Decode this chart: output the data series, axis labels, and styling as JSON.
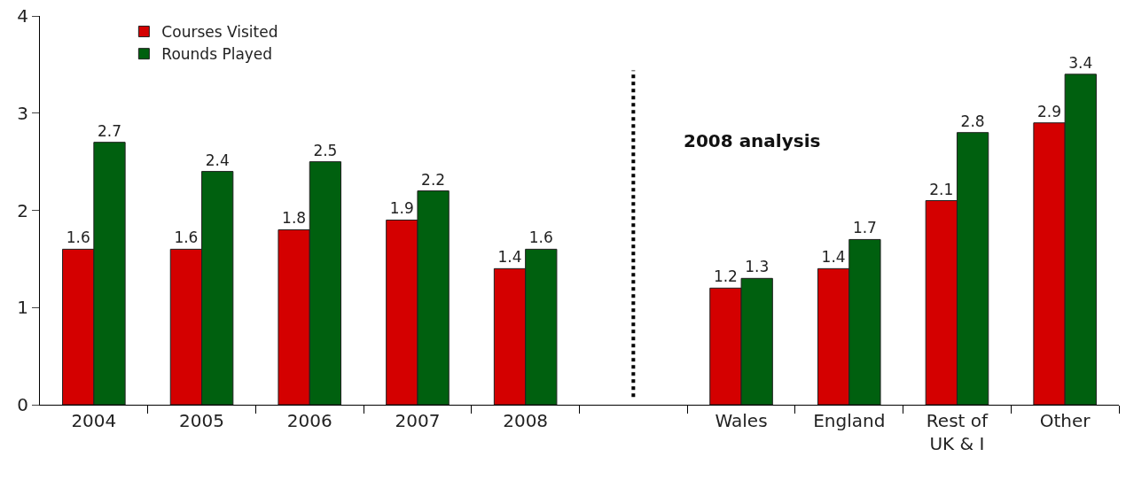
{
  "chart_data": {
    "type": "bar",
    "categories": [
      "2004",
      "2005",
      "2006",
      "2007",
      "2008",
      null,
      "Wales",
      "England",
      "Rest of\nUK & I",
      "Other"
    ],
    "series": [
      {
        "name": "Courses Visited",
        "color": "#d40000",
        "values": [
          1.6,
          1.6,
          1.8,
          1.9,
          1.4,
          null,
          1.2,
          1.4,
          2.1,
          2.9
        ]
      },
      {
        "name": "Rounds Played",
        "color": "#00600f",
        "values": [
          2.7,
          2.4,
          2.5,
          2.2,
          1.6,
          null,
          1.3,
          1.7,
          2.8,
          3.4
        ]
      }
    ],
    "ylim": [
      0,
      4
    ],
    "yticks": [
      0,
      1,
      2,
      3,
      4
    ],
    "legend": "top left",
    "data_labels": true,
    "annotations": [
      "2008 analysis"
    ]
  }
}
